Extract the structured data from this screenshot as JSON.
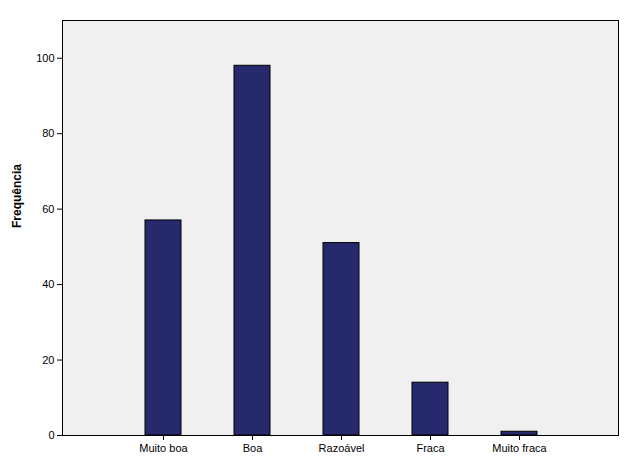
{
  "chart_data": {
    "type": "bar",
    "y_label": "Frequência",
    "categories": [
      "Muito boa",
      "Boa",
      "Razoável",
      "Fraca",
      "Muito fraca"
    ],
    "values": [
      57,
      98,
      51,
      14,
      1
    ],
    "color": "#27296d",
    "ylim": [
      0,
      110
    ],
    "yticks": [
      0,
      20,
      40,
      60,
      80,
      100
    ],
    "grid": false
  }
}
